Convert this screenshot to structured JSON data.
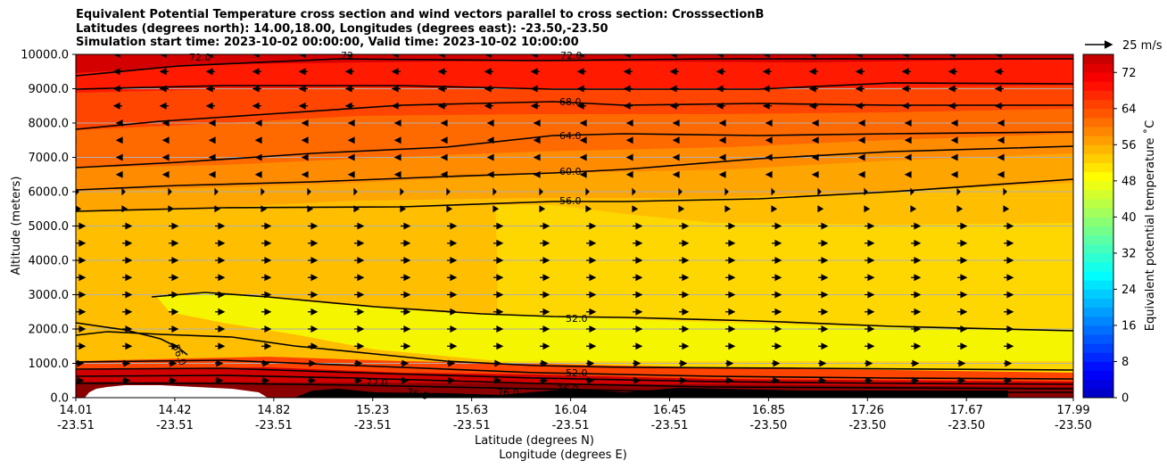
{
  "chart_data": {
    "type": "heatmap",
    "title_lines": [
      "Equivalent Potential Temperature cross section and wind vectors parallel to cross section: CrosssectionB",
      "Latitudes (degrees north): 14.00,18.00, Longitudes (degrees east): -23.50,-23.50",
      "Simulation start time: 2023-10-02 00:00:00, Valid time: 2023-10-02 10:00:00"
    ],
    "ylabel": "Altitude (meters)",
    "xlabel": "Latitude (degrees N)",
    "xlabel2": "Longitude (degrees E)",
    "ylim": [
      0,
      10000
    ],
    "y_ticks": [
      "0.0",
      "1000.0",
      "2000.0",
      "3000.0",
      "4000.0",
      "5000.0",
      "6000.0",
      "7000.0",
      "8000.0",
      "9000.0",
      "10000.0"
    ],
    "x_ticks": [
      {
        "lat": "14.01",
        "lon": "-23.51"
      },
      {
        "lat": "14.42",
        "lon": "-23.51"
      },
      {
        "lat": "14.82",
        "lon": "-23.51"
      },
      {
        "lat": "15.23",
        "lon": "-23.51"
      },
      {
        "lat": "15.63",
        "lon": "-23.51"
      },
      {
        "lat": "16.04",
        "lon": "-23.51"
      },
      {
        "lat": "16.45",
        "lon": "-23.51"
      },
      {
        "lat": "16.85",
        "lon": "-23.50"
      },
      {
        "lat": "17.26",
        "lon": "-23.50"
      },
      {
        "lat": "17.67",
        "lon": "-23.50"
      },
      {
        "lat": "17.99",
        "lon": "-23.50"
      }
    ],
    "colorbar": {
      "label": "Equivalent potential temperature ˚C",
      "min": 0,
      "max": 76,
      "step": 2,
      "ticks": [
        0,
        8,
        16,
        24,
        32,
        40,
        48,
        56,
        64,
        72
      ],
      "tick_labels": [
        "0",
        "8",
        "16",
        "24",
        "32",
        "40",
        "48",
        "56",
        "64",
        "72"
      ]
    },
    "quiver_key": "25 m/s",
    "contour_labels": [
      {
        "text": "72.0"
      },
      {
        "text": "72"
      },
      {
        "text": "72.0"
      },
      {
        "text": "68.0"
      },
      {
        "text": "64.0"
      },
      {
        "text": "60.0"
      },
      {
        "text": "56.0"
      },
      {
        "text": "52.0"
      },
      {
        "text": "56.0"
      },
      {
        "text": "52.0"
      },
      {
        "text": "72.0"
      },
      {
        "text": "76.0"
      },
      {
        "text": "76.0"
      },
      {
        "text": "76.0"
      }
    ],
    "colors": {
      "colormap": "jet",
      "contour": "#000000",
      "terrain": "#ffffff",
      "grid": "#b0b0b0"
    }
  }
}
